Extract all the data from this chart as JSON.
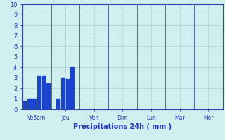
{
  "bar_values": [
    0.8,
    1.0,
    1.0,
    3.2,
    3.2,
    2.5,
    1.0,
    3.0,
    2.9,
    4.0
  ],
  "bar_positions": [
    0,
    1,
    2,
    3,
    4,
    5,
    7,
    8,
    9,
    10
  ],
  "bar_color": "#1a44cc",
  "bar_edge_color": "#1a44cc",
  "background_color": "#d0f0f0",
  "grid_color": "#a8d4d4",
  "axis_label_color": "#2233bb",
  "tick_label_color": "#2233bb",
  "xlabel": "Précipitations 24h ( mm )",
  "ylim": [
    0,
    10
  ],
  "yticks": [
    0,
    1,
    2,
    3,
    4,
    5,
    6,
    7,
    8,
    9,
    10
  ],
  "xtick_labels": [
    "Ve6am",
    "Jeu",
    "Ven",
    "Dim",
    "Lun",
    "Mar",
    "Mer"
  ],
  "total_slots": 42,
  "bar_width": 0.85,
  "day_sep_color": "#5566aa",
  "spine_color": "#3344aa"
}
